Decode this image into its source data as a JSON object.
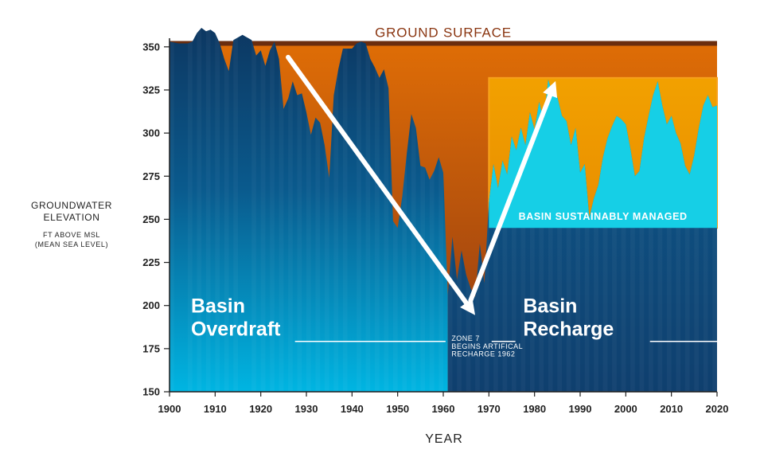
{
  "chart_data": {
    "type": "area",
    "xlabel": "YEAR",
    "ylabel_lines": [
      "GROUNDWATER",
      "ELEVATION"
    ],
    "ylabel_sub_lines": [
      "FT ABOVE MSL",
      "(MEAN SEA LEVEL)"
    ],
    "xlim": [
      1900,
      2020
    ],
    "ylim": [
      150,
      355
    ],
    "x_ticks": [
      1900,
      1910,
      1920,
      1930,
      1940,
      1950,
      1960,
      1970,
      1980,
      1990,
      2000,
      2010,
      2020
    ],
    "y_ticks": [
      150,
      175,
      200,
      225,
      250,
      275,
      300,
      325,
      350
    ],
    "ground_surface": {
      "label": "GROUND SURFACE",
      "elevation": 352
    },
    "series": [
      {
        "values": [
          [
            1900,
            353
          ],
          [
            1902,
            352
          ],
          [
            1904,
            352
          ],
          [
            1905,
            353
          ],
          [
            1906,
            358
          ],
          [
            1907,
            361
          ],
          [
            1908,
            359
          ],
          [
            1909,
            360
          ],
          [
            1910,
            358
          ],
          [
            1911,
            352
          ],
          [
            1912,
            343
          ],
          [
            1913,
            336
          ],
          [
            1914,
            354
          ],
          [
            1916,
            357
          ],
          [
            1918,
            354
          ],
          [
            1919,
            345
          ],
          [
            1920,
            348
          ],
          [
            1921,
            339
          ],
          [
            1922,
            348
          ],
          [
            1923,
            353
          ],
          [
            1924,
            343
          ],
          [
            1925,
            314
          ],
          [
            1926,
            320
          ],
          [
            1927,
            330
          ],
          [
            1928,
            322
          ],
          [
            1929,
            323
          ],
          [
            1930,
            312
          ],
          [
            1931,
            299
          ],
          [
            1932,
            309
          ],
          [
            1933,
            306
          ],
          [
            1934,
            293
          ],
          [
            1935,
            274
          ],
          [
            1936,
            322
          ],
          [
            1937,
            337
          ],
          [
            1938,
            349
          ],
          [
            1940,
            349
          ],
          [
            1941,
            352
          ],
          [
            1942,
            353
          ],
          [
            1943,
            352
          ],
          [
            1944,
            343
          ],
          [
            1945,
            338
          ],
          [
            1946,
            332
          ],
          [
            1947,
            337
          ],
          [
            1948,
            326
          ],
          [
            1949,
            249
          ],
          [
            1950,
            245
          ],
          [
            1951,
            263
          ],
          [
            1952,
            288
          ],
          [
            1953,
            311
          ],
          [
            1954,
            303
          ],
          [
            1955,
            281
          ],
          [
            1956,
            280
          ],
          [
            1957,
            273
          ],
          [
            1958,
            278
          ],
          [
            1959,
            286
          ],
          [
            1960,
            277
          ],
          [
            1961,
            206
          ],
          [
            1962,
            240
          ],
          [
            1963,
            215
          ],
          [
            1964,
            232
          ],
          [
            1965,
            218
          ],
          [
            1966,
            210
          ],
          [
            1967,
            205
          ],
          [
            1968,
            236
          ],
          [
            1969,
            213
          ],
          [
            1970,
            260
          ],
          [
            1971,
            282
          ],
          [
            1972,
            268
          ],
          [
            1973,
            284
          ],
          [
            1974,
            276
          ],
          [
            1975,
            298
          ],
          [
            1976,
            290
          ],
          [
            1977,
            303
          ],
          [
            1978,
            293
          ],
          [
            1979,
            312
          ],
          [
            1980,
            302
          ],
          [
            1981,
            318
          ],
          [
            1982,
            308
          ],
          [
            1983,
            331
          ],
          [
            1984,
            322
          ],
          [
            1985,
            321
          ],
          [
            1986,
            310
          ],
          [
            1987,
            307
          ],
          [
            1988,
            293
          ],
          [
            1989,
            303
          ],
          [
            1990,
            277
          ],
          [
            1991,
            282
          ],
          [
            1992,
            251
          ],
          [
            1993,
            262
          ],
          [
            1994,
            270
          ],
          [
            1995,
            286
          ],
          [
            1996,
            297
          ],
          [
            1997,
            304
          ],
          [
            1998,
            310
          ],
          [
            1999,
            308
          ],
          [
            2000,
            305
          ],
          [
            2001,
            291
          ],
          [
            2002,
            275
          ],
          [
            2003,
            278
          ],
          [
            2004,
            297
          ],
          [
            2005,
            310
          ],
          [
            2006,
            322
          ],
          [
            2007,
            330
          ],
          [
            2008,
            316
          ],
          [
            2009,
            305
          ],
          [
            2010,
            310
          ],
          [
            2011,
            300
          ],
          [
            2012,
            294
          ],
          [
            2013,
            281
          ],
          [
            2014,
            276
          ],
          [
            2015,
            287
          ],
          [
            2016,
            303
          ],
          [
            2017,
            316
          ],
          [
            2018,
            322
          ],
          [
            2019,
            315
          ],
          [
            2020,
            316
          ]
        ]
      }
    ],
    "annotations": {
      "overdraft": {
        "label_lines": [
          "Basin",
          "Overdraft"
        ],
        "x_range": [
          1900,
          1961
        ],
        "arrow": [
          [
            1926,
            344
          ],
          [
            1966,
            198
          ]
        ]
      },
      "recharge": {
        "label_lines": [
          "Basin",
          "Recharge"
        ],
        "x_range": [
          1961,
          2020
        ],
        "arrow": [
          [
            1966,
            203
          ],
          [
            1984,
            326
          ]
        ]
      },
      "zone7": {
        "label_lines": [
          "ZONE 7",
          "BEGINS ARTIFICAL",
          "RECHARGE 1962"
        ]
      },
      "sustainable": {
        "label": "BASIN SUSTAINABLY MANAGED",
        "x_range": [
          1970,
          2020
        ],
        "y_range": [
          245,
          332
        ]
      }
    },
    "colors": {
      "ground_band": "#6b2d0e",
      "dry_top": "#df6d06",
      "dry_bottom": "#8e3812",
      "water_light": "#00b5e2",
      "water_dark": "#0d3660",
      "recharge_water": "#0f3f6e",
      "sustainable_fill": "#16cfe6",
      "sustainable_box": "#f7a11c",
      "ground_label": "#8a3510",
      "arrow": "#ffffff"
    }
  }
}
